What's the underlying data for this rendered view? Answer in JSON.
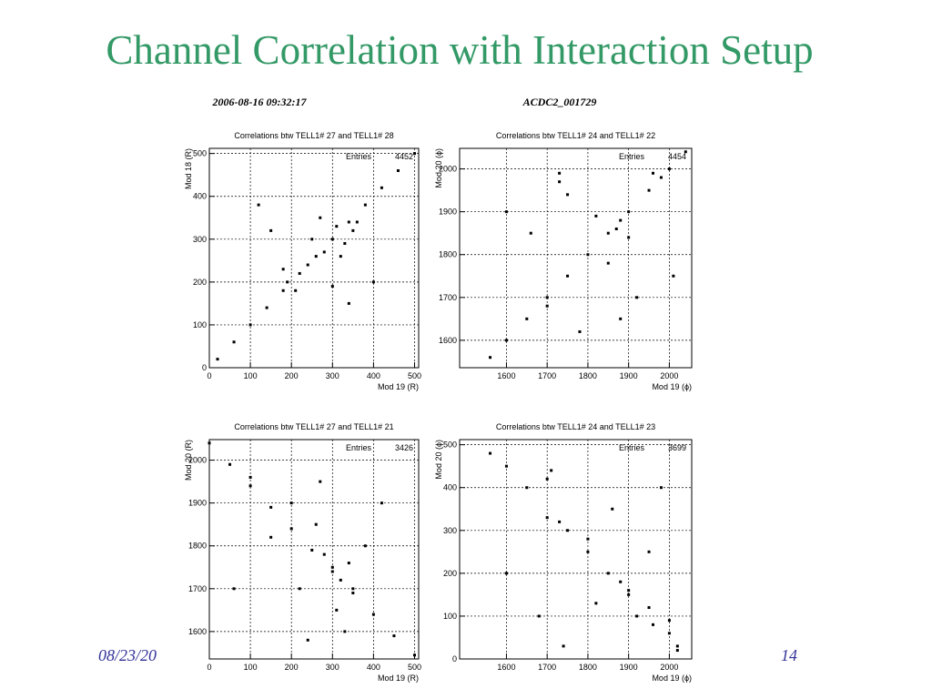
{
  "header": {
    "title": "Channel Correlation with Interaction Setup"
  },
  "footer": {
    "date": "08/23/20",
    "page": "14"
  },
  "figure": {
    "timestamp": "2006-08-16 09:32:17",
    "run": "ACDC2_001729"
  },
  "chart_data": [
    {
      "type": "scatter",
      "title": "Correlations btw TELL1# 27 and TELL1# 28",
      "xlabel": "Mod 19 (R)",
      "ylabel": "Mod 18 (R)",
      "stats_label": "Entries",
      "stats_value": "4452",
      "x": [
        20,
        60,
        100,
        140,
        180,
        220,
        260,
        300,
        340,
        380,
        420,
        460,
        500,
        250,
        280,
        310,
        330,
        350,
        270,
        190,
        210,
        180,
        320,
        360,
        240,
        150,
        400,
        120,
        300,
        340
      ],
      "y": [
        20,
        60,
        100,
        140,
        180,
        220,
        260,
        300,
        340,
        380,
        420,
        460,
        500,
        300,
        270,
        330,
        290,
        320,
        350,
        200,
        180,
        230,
        260,
        340,
        240,
        320,
        200,
        380,
        190,
        150
      ],
      "xlim": [
        0,
        510
      ],
      "ylim": [
        0,
        512
      ],
      "xticks": [
        0,
        100,
        200,
        300,
        400,
        500
      ],
      "yticks": [
        0,
        100,
        200,
        300,
        400,
        500
      ],
      "grid": true,
      "color": "#000000"
    },
    {
      "type": "scatter",
      "title": "Correlations btw TELL1# 24 and TELL1# 22",
      "xlabel": "Mod 19 (ϕ)",
      "ylabel": "Mod 20 (ϕ)",
      "stats_label": "Entries",
      "stats_value": "4454",
      "x": [
        1560,
        1600,
        1650,
        1700,
        1750,
        1800,
        1850,
        1900,
        1950,
        2000,
        2040,
        1730,
        1730,
        1870,
        1880,
        1900,
        1820,
        1700,
        1960,
        1980,
        1850,
        1600,
        1780,
        1920,
        1660,
        2010,
        1750,
        1880
      ],
      "y": [
        1560,
        1600,
        1650,
        1700,
        1750,
        1800,
        1850,
        1900,
        1950,
        2000,
        2040,
        1990,
        1970,
        1860,
        1880,
        1840,
        1890,
        1680,
        1990,
        1980,
        1780,
        1900,
        1620,
        1700,
        1850,
        1750,
        1940,
        1650
      ],
      "xlim": [
        1485,
        2055
      ],
      "ylim": [
        1536,
        2048
      ],
      "xticks": [
        1600,
        1700,
        1800,
        1900,
        2000
      ],
      "yticks": [
        1600,
        1700,
        1800,
        1900,
        2000
      ],
      "grid": true,
      "color": "#000000"
    },
    {
      "type": "scatter",
      "title": "Correlations btw TELL1# 27 and TELL1# 21",
      "xlabel": "Mod 19 (R)",
      "ylabel": "Mod 20 (R)",
      "stats_label": "Entries",
      "stats_value": "3426",
      "x": [
        0,
        50,
        100,
        150,
        200,
        250,
        300,
        350,
        400,
        450,
        500,
        300,
        320,
        340,
        280,
        350,
        260,
        200,
        150,
        100,
        380,
        330,
        220,
        270,
        60,
        420,
        310,
        240
      ],
      "y": [
        2040,
        1990,
        1940,
        1890,
        1840,
        1790,
        1740,
        1690,
        1640,
        1590,
        1545,
        1750,
        1720,
        1760,
        1780,
        1700,
        1850,
        1900,
        1820,
        1960,
        1800,
        1600,
        1700,
        1950,
        1700,
        1900,
        1650,
        1580
      ],
      "xlim": [
        0,
        510
      ],
      "ylim": [
        1536,
        2048
      ],
      "xticks": [
        0,
        100,
        200,
        300,
        400,
        500
      ],
      "yticks": [
        1600,
        1700,
        1800,
        1900,
        2000
      ],
      "grid": true,
      "color": "#000000"
    },
    {
      "type": "scatter",
      "title": "Correlations btw TELL1# 24 and TELL1# 23",
      "xlabel": "Mod 19 (ϕ)",
      "ylabel": "Mod 20 (ϕ)",
      "stats_label": "Entries",
      "stats_value": "3699",
      "x": [
        1600,
        1650,
        1700,
        1730,
        1750,
        1800,
        1850,
        1900,
        1950,
        2000,
        2020,
        1700,
        1710,
        1880,
        1900,
        1920,
        1960,
        2000,
        2020,
        1800,
        1600,
        1860,
        1740,
        1950,
        1560,
        1820,
        1980,
        1680
      ],
      "y": [
        450,
        400,
        420,
        320,
        300,
        250,
        200,
        150,
        120,
        60,
        30,
        330,
        440,
        180,
        160,
        100,
        80,
        90,
        20,
        280,
        200,
        350,
        30,
        250,
        480,
        130,
        400,
        100
      ],
      "xlim": [
        1485,
        2055
      ],
      "ylim": [
        0,
        512
      ],
      "xticks": [
        1600,
        1700,
        1800,
        1900,
        2000
      ],
      "yticks": [
        0,
        100,
        200,
        300,
        400,
        500
      ],
      "grid": true,
      "color": "#000000"
    }
  ]
}
